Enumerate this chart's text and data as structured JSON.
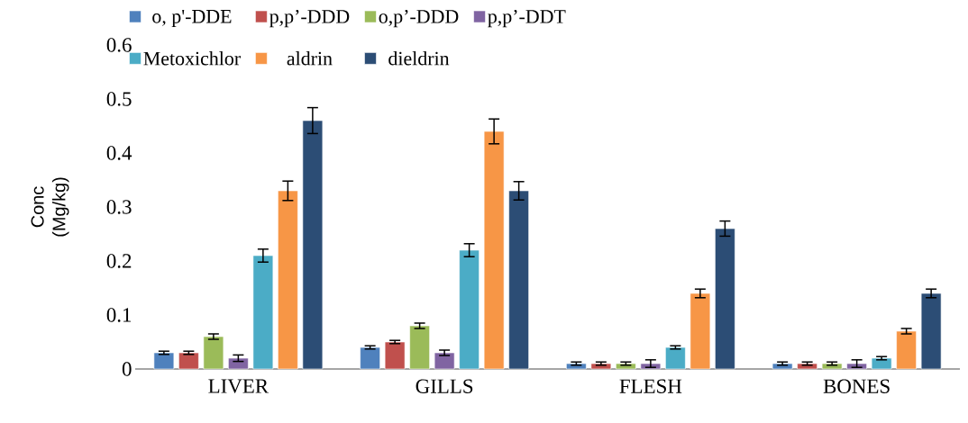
{
  "chart_data": {
    "type": "bar",
    "categories": [
      "LIVER",
      "GILLS",
      "FLESH",
      "BONES"
    ],
    "ylabel": "Conc (Mg/kg)",
    "ylim": [
      0,
      0.6
    ],
    "yticks": [
      0,
      0.1,
      0.2,
      0.3,
      0.4,
      0.5,
      0.6
    ],
    "legend": "top",
    "grid": false,
    "series": [
      {
        "name": "o, p'-DDE",
        "color": "#4f81bd",
        "values": [
          0.03,
          0.04,
          0.01,
          0.01
        ],
        "errors": [
          0.003,
          0.003,
          0.003,
          0.003
        ]
      },
      {
        "name": "p,p’-DDD",
        "color": "#c0504d",
        "values": [
          0.03,
          0.05,
          0.01,
          0.01
        ],
        "errors": [
          0.003,
          0.003,
          0.003,
          0.003
        ]
      },
      {
        "name": "o,p’-DDD",
        "color": "#9bbb59",
        "values": [
          0.06,
          0.08,
          0.01,
          0.01
        ],
        "errors": [
          0.005,
          0.005,
          0.003,
          0.003
        ]
      },
      {
        "name": "p,p’-DDT",
        "color": "#8064a2",
        "values": [
          0.02,
          0.03,
          0.01,
          0.01
        ],
        "errors": [
          0.006,
          0.005,
          0.007,
          0.007
        ]
      },
      {
        "name": "Metoxichlor",
        "color": "#4bacc6",
        "values": [
          0.21,
          0.22,
          0.04,
          0.02
        ],
        "errors": [
          0.012,
          0.012,
          0.003,
          0.003
        ]
      },
      {
        "name": "aldrin",
        "color": "#f79646",
        "values": [
          0.33,
          0.44,
          0.14,
          0.07
        ],
        "errors": [
          0.018,
          0.023,
          0.008,
          0.005
        ]
      },
      {
        "name": "dieldrin",
        "color": "#2c4d75",
        "values": [
          0.46,
          0.33,
          0.26,
          0.14
        ],
        "errors": [
          0.024,
          0.017,
          0.014,
          0.008
        ]
      }
    ]
  }
}
